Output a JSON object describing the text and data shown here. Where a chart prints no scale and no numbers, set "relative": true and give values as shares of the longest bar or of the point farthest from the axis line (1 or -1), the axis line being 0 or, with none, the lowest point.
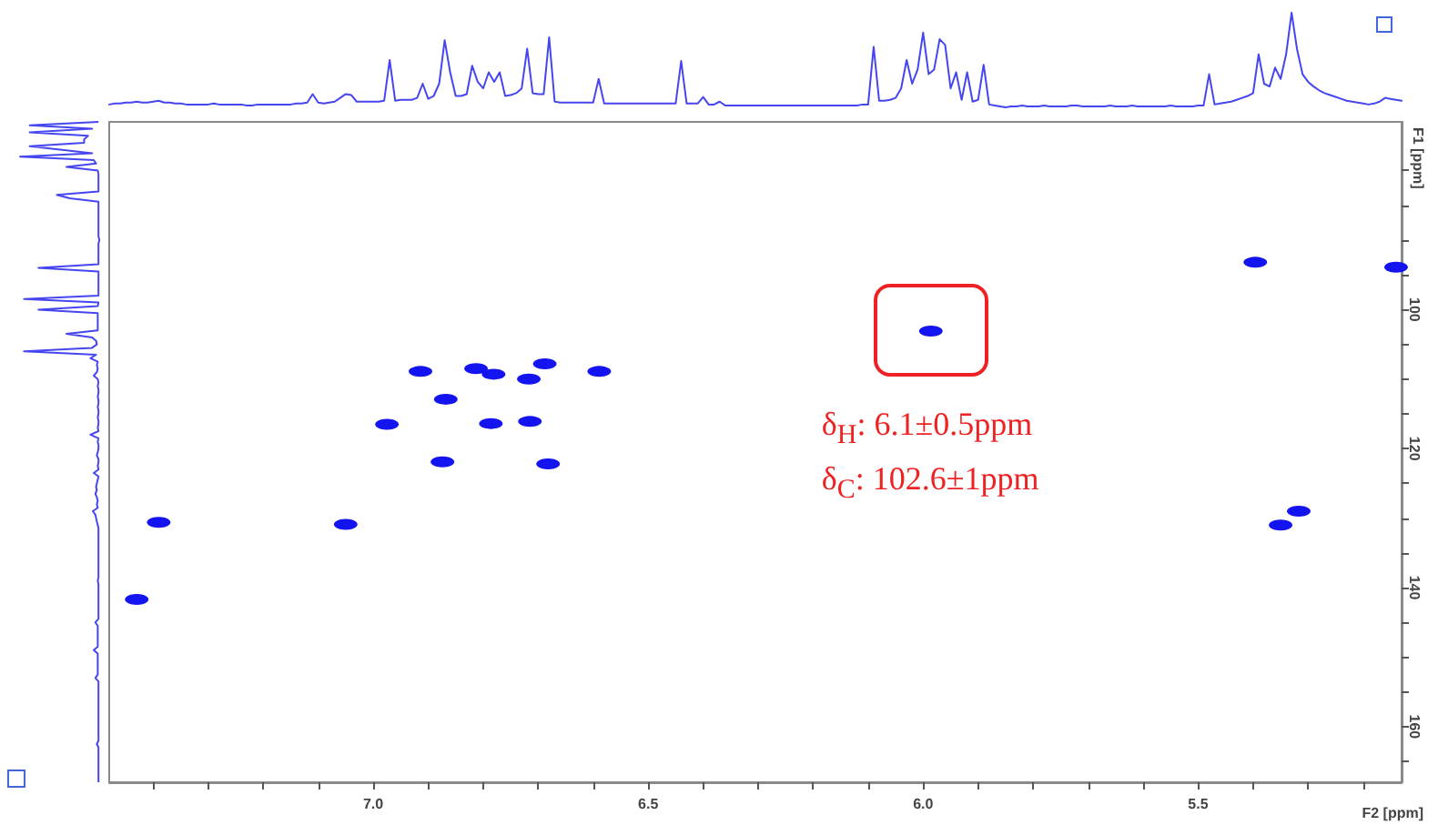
{
  "chart_data": [
    {
      "type": "line",
      "relative": true,
      "color": "#4646f0",
      "categories": [
        null,
        null,
        null,
        null,
        null,
        null,
        null,
        null,
        null,
        null,
        null,
        null,
        null,
        null,
        null,
        null,
        null,
        null,
        null,
        null,
        null,
        null,
        null,
        null,
        null,
        null,
        null,
        null,
        null,
        null,
        null,
        null,
        null,
        null,
        null,
        null,
        null,
        null,
        null,
        null,
        null,
        null,
        null,
        null,
        null,
        null,
        null,
        null,
        null,
        null,
        null,
        null,
        null,
        null,
        null,
        null,
        null,
        null,
        null,
        null,
        null,
        null,
        null,
        null,
        null,
        null,
        null,
        null,
        null,
        null,
        null,
        null,
        null,
        null,
        null,
        null,
        null,
        null,
        null,
        null,
        null,
        null,
        null,
        null,
        null,
        null,
        null,
        null,
        null,
        null,
        null,
        null,
        null,
        null,
        null,
        null,
        null,
        null,
        null,
        null,
        null,
        null,
        null,
        null,
        null,
        null,
        null,
        null,
        null,
        null,
        null,
        null,
        null,
        null,
        null,
        null,
        null,
        null,
        null,
        null,
        null,
        null,
        null,
        null,
        null,
        null,
        null,
        null,
        null,
        null,
        null,
        null,
        null,
        null,
        null,
        null,
        null,
        null,
        null,
        null,
        null,
        null,
        null,
        null,
        null,
        null,
        null,
        null,
        null,
        null,
        null,
        null,
        null,
        null,
        null,
        null,
        null,
        null,
        null,
        null,
        null,
        null,
        null,
        null,
        null,
        null,
        null,
        null,
        null,
        null,
        null,
        null,
        null,
        null,
        null,
        null,
        null,
        null,
        null,
        null,
        null,
        null,
        null,
        null,
        null,
        null,
        null,
        null,
        null,
        null,
        null,
        null,
        null,
        null,
        null,
        null,
        null,
        null,
        null,
        null,
        null,
        null,
        null,
        null,
        null,
        null,
        null,
        null,
        null,
        null,
        null,
        null,
        null,
        null,
        null,
        null,
        null,
        null,
        null,
        null,
        null,
        null,
        null,
        null,
        null,
        null,
        null,
        null,
        null,
        null,
        null,
        null,
        null,
        null,
        null,
        null
      ],
      "values": [
        0.03,
        0.04,
        0.04,
        0.05,
        0.05,
        0.06,
        0.05,
        0.05,
        0.06,
        0.07,
        0.05,
        0.05,
        0.04,
        0.04,
        0.03,
        0.03,
        0.03,
        0.03,
        0.03,
        0.04,
        0.03,
        0.03,
        0.03,
        0.03,
        0.03,
        0.02,
        0.02,
        0.03,
        0.03,
        0.03,
        0.03,
        0.03,
        0.03,
        0.03,
        0.04,
        0.04,
        0.05,
        0.14,
        0.05,
        0.04,
        0.05,
        0.06,
        0.1,
        0.14,
        0.13,
        0.06,
        0.06,
        0.06,
        0.06,
        0.06,
        0.07,
        0.5,
        0.07,
        0.08,
        0.08,
        0.08,
        0.1,
        0.25,
        0.09,
        0.12,
        0.25,
        0.71,
        0.37,
        0.12,
        0.12,
        0.14,
        0.44,
        0.27,
        0.2,
        0.37,
        0.27,
        0.37,
        0.12,
        0.13,
        0.15,
        0.2,
        0.62,
        0.15,
        0.14,
        0.14,
        0.74,
        0.06,
        0.05,
        0.05,
        0.05,
        0.05,
        0.05,
        0.05,
        0.05,
        0.3,
        0.04,
        0.04,
        0.04,
        0.04,
        0.04,
        0.04,
        0.04,
        0.04,
        0.04,
        0.04,
        0.04,
        0.04,
        0.04,
        0.04,
        0.49,
        0.04,
        0.04,
        0.04,
        0.11,
        0.03,
        0.03,
        0.06,
        0.02,
        0.02,
        0.02,
        0.02,
        0.02,
        0.02,
        0.02,
        0.02,
        0.02,
        0.02,
        0.02,
        0.02,
        0.02,
        0.02,
        0.02,
        0.02,
        0.02,
        0.02,
        0.02,
        0.02,
        0.02,
        0.02,
        0.02,
        0.02,
        0.02,
        0.03,
        0.03,
        0.64,
        0.07,
        0.07,
        0.08,
        0.1,
        0.2,
        0.5,
        0.25,
        0.4,
        0.79,
        0.35,
        0.4,
        0.72,
        0.66,
        0.2,
        0.37,
        0.08,
        0.37,
        0.06,
        0.08,
        0.45,
        0.03,
        0.02,
        0.01,
        0,
        0.01,
        0.01,
        0.02,
        0.01,
        0.01,
        0.01,
        0.02,
        0.01,
        0.01,
        0.01,
        0.01,
        0.02,
        0.02,
        0.01,
        0.01,
        0.01,
        0.01,
        0.01,
        0.02,
        0.01,
        0.01,
        0.01,
        0.02,
        0.01,
        0.01,
        0.01,
        0.01,
        0.01,
        0.01,
        0.02,
        0.01,
        0.01,
        0.01,
        0.01,
        0.02,
        0.02,
        0.35,
        0.03,
        0.04,
        0.05,
        0.06,
        0.08,
        0.1,
        0.12,
        0.15,
        0.56,
        0.25,
        0.22,
        0.42,
        0.3,
        0.56,
        1,
        0.61,
        0.35,
        0.27,
        0.22,
        0.18,
        0.15,
        0.13,
        0.11,
        0.09,
        0.07,
        0.06,
        0.05,
        0.04,
        0.03,
        0.04,
        0.06,
        0.1,
        0.09,
        0.08,
        0.07
      ]
    },
    {
      "type": "scatter",
      "marker": "circle",
      "color": "#1414f0",
      "xlabel": "F2 [ppm]",
      "ylabel": "F1 [ppm]",
      "xlim": [
        7.48,
        5.13
      ],
      "ylim": [
        168,
        73
      ],
      "xticks": [
        {
          "value": 7.4,
          "label": null
        },
        {
          "value": 7.3,
          "label": null
        },
        {
          "value": 7.2,
          "label": null
        },
        {
          "value": 7.1,
          "label": null
        },
        {
          "value": 7,
          "label": "7.0"
        },
        {
          "value": 6.9,
          "label": null
        },
        {
          "value": 6.8,
          "label": null
        },
        {
          "value": 6.7,
          "label": null
        },
        {
          "value": 6.6,
          "label": null
        },
        {
          "value": 6.5,
          "label": "6.5"
        },
        {
          "value": 6.4,
          "label": null
        },
        {
          "value": 6.3,
          "label": null
        },
        {
          "value": 6.2,
          "label": null
        },
        {
          "value": 6.1,
          "label": null
        },
        {
          "value": 6,
          "label": "6.0"
        },
        {
          "value": 5.9,
          "label": null
        },
        {
          "value": 5.8,
          "label": null
        },
        {
          "value": 5.7,
          "label": null
        },
        {
          "value": 5.6,
          "label": null
        },
        {
          "value": 5.5,
          "label": "5.5"
        },
        {
          "value": 5.4,
          "label": null
        },
        {
          "value": 5.3,
          "label": null
        },
        {
          "value": 5.2,
          "label": null
        }
      ],
      "yticks": [
        {
          "value": 80,
          "label": null
        },
        {
          "value": 85,
          "label": null
        },
        {
          "value": 90,
          "label": null
        },
        {
          "value": 95,
          "label": null
        },
        100,
        {
          "value": 105,
          "label": null
        },
        {
          "value": 110,
          "label": null
        },
        {
          "value": 115,
          "label": null
        },
        120,
        {
          "value": 125,
          "label": null
        },
        {
          "value": 130,
          "label": null
        },
        {
          "value": 135,
          "label": null
        },
        140,
        {
          "value": 145,
          "label": null
        },
        {
          "value": 150,
          "label": null
        },
        {
          "value": 155,
          "label": null
        },
        160,
        {
          "value": 165,
          "label": null
        }
      ],
      "x": [
        7.39,
        7.05,
        6.975,
        6.914,
        6.868,
        6.874,
        6.813,
        6.781,
        6.786,
        6.717,
        6.715,
        6.688,
        6.682,
        6.589,
        5.986,
        5.396,
        5.14,
        5.317,
        5.35,
        7.43
      ],
      "values": [
        130.6,
        130.9,
        116.5,
        108.9,
        112.9,
        121.9,
        108.5,
        109.3,
        116.4,
        110,
        116.1,
        107.8,
        122.2,
        108.9,
        103.1,
        93.2,
        93.9,
        129,
        131,
        141.7
      ],
      "annotations": [
        {
          "text": "δ$_{H}$: 6.1±0.5ppm\nδ$_{C}$: 102.6±1ppm",
          "x": 5.986,
          "y": 103.1
        }
      ]
    }
  ]
}
